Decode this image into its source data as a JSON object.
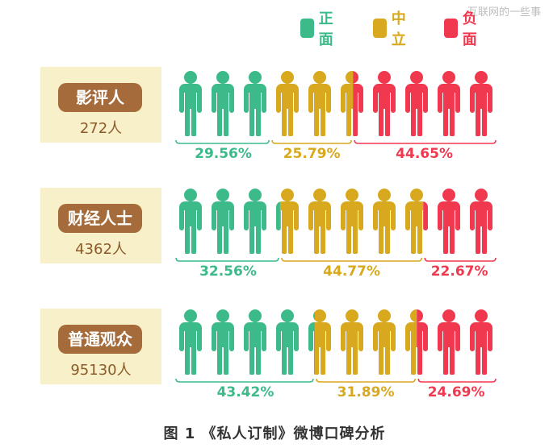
{
  "watermark": "互联网的一些事",
  "caption": "图 1 《私人订制》微博口碑分析",
  "legend": [
    {
      "label": "正面",
      "color": "#3dba8a"
    },
    {
      "label": "中立",
      "color": "#d8a91e"
    },
    {
      "label": "负面",
      "color": "#f0394f"
    }
  ],
  "chart_data": {
    "type": "bar",
    "title": "",
    "categories": [
      "影评人",
      "财经人士",
      "普通观众"
    ],
    "counts": [
      "272人",
      "4362人",
      "95130人"
    ],
    "series": [
      {
        "name": "正面",
        "color": "#3dba8a",
        "values": [
          29.56,
          32.56,
          43.42
        ],
        "labels": [
          "29.56%",
          "32.56%",
          "43.42%"
        ]
      },
      {
        "name": "中立",
        "color": "#d8a91e",
        "values": [
          25.79,
          44.77,
          31.89
        ],
        "labels": [
          "25.79%",
          "44.77%",
          "31.89%"
        ]
      },
      {
        "name": "负面",
        "color": "#f0394f",
        "values": [
          44.65,
          22.67,
          24.69
        ],
        "labels": [
          "44.65%",
          "22.67%",
          "24.69%"
        ]
      }
    ],
    "unit": "%",
    "icons_per_row": 10
  }
}
